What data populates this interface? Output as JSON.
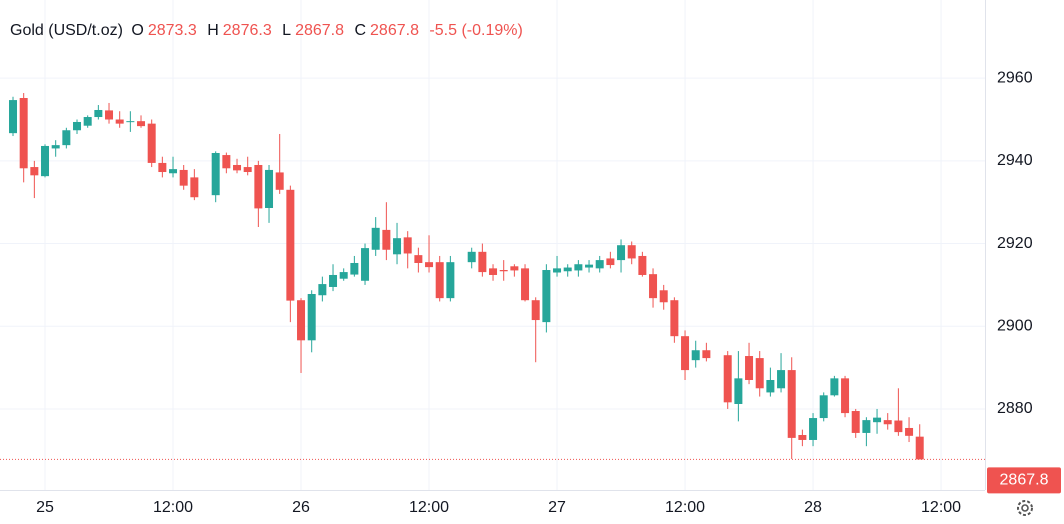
{
  "chart_data": {
    "type": "candlestick",
    "title": "Gold (USD/t.oz)",
    "ohlc_labels": [
      "O",
      "H",
      "L",
      "C"
    ],
    "change": "-5.5 (-0.19%)",
    "up_color": "#26a69a",
    "down_color": "#ef5350",
    "xlim": [
      -4.22,
      88.12
    ],
    "xticks": [
      {
        "value": 0,
        "label": "25"
      },
      {
        "value": 12,
        "label": "12:00"
      },
      {
        "value": 24,
        "label": "26"
      },
      {
        "value": 36,
        "label": "12:00"
      },
      {
        "value": 48,
        "label": "27"
      },
      {
        "value": 60,
        "label": "12:00"
      },
      {
        "value": 72,
        "label": "28"
      },
      {
        "value": 84,
        "label": "12:00"
      }
    ],
    "ylim": [
      2860.4,
      2978.9
    ],
    "yticks": [
      2880,
      2900,
      2920,
      2940,
      2960
    ],
    "grid": true,
    "x": [
      -3,
      -2,
      -1,
      0,
      1,
      2,
      3,
      4,
      5,
      6,
      7,
      8,
      9,
      10,
      11,
      12,
      13,
      14,
      16,
      17,
      18,
      19,
      20,
      21,
      22,
      23,
      24,
      25,
      26,
      27,
      28,
      29,
      30,
      31,
      32,
      33,
      34,
      35,
      36,
      37,
      38,
      40,
      41,
      42,
      43,
      44,
      45,
      46,
      47,
      48,
      49,
      50,
      51,
      52,
      53,
      54,
      55,
      56,
      57,
      58,
      59,
      60,
      61,
      62,
      64,
      65,
      66,
      67,
      68,
      69,
      70,
      71,
      72,
      73,
      74,
      75,
      76,
      77,
      78,
      79,
      80,
      81,
      82
    ],
    "open": [
      2946.7,
      2955.2,
      2938.5,
      2936.3,
      2943,
      2943.8,
      2947.4,
      2948.5,
      2950.6,
      2952.2,
      2950,
      2949.5,
      2949.6,
      2949,
      2939.5,
      2937,
      2937.8,
      2936,
      2931.7,
      2941.4,
      2939,
      2938.5,
      2939,
      2928.6,
      2937.2,
      2933,
      2906.3,
      2896.6,
      2907.5,
      2909.5,
      2911.5,
      2912.5,
      2911,
      2918.5,
      2923.3,
      2917.4,
      2921.5,
      2917.2,
      2915.5,
      2915.5,
      2906.8,
      2915.5,
      2918,
      2914,
      2913.6,
      2914.5,
      2914,
      2906.3,
      2901,
      2913,
      2913.3,
      2913.5,
      2914.2,
      2914,
      2916.4,
      2916,
      2919.6,
      2917,
      2912.6,
      2908.7,
      2906.3,
      2897.6,
      2891.8,
      2894.2,
      2893,
      2881.2,
      2892.8,
      2892.3,
      2884,
      2885,
      2889.4,
      2873.7,
      2872.5,
      2877.8,
      2883.3,
      2887.4,
      2879.5,
      2874.2,
      2876.8,
      2877.3,
      2877.2,
      2875.4,
      2873.3
    ],
    "high": [
      2955.5,
      2956.4,
      2940,
      2944,
      2945,
      2948,
      2950,
      2951,
      2953.5,
      2954,
      2952,
      2952,
      2951,
      2950,
      2941,
      2941,
      2939,
      2938,
      2942.3,
      2942,
      2940.5,
      2941,
      2940,
      2939,
      2946.5,
      2934,
      2906.8,
      2908.7,
      2912,
      2915,
      2914,
      2917,
      2920,
      2926.4,
      2930,
      2925,
      2923,
      2919,
      2922,
      2917,
      2917,
      2919,
      2920,
      2915,
      2916,
      2915,
      2915,
      2907,
      2915,
      2917,
      2915,
      2916,
      2916,
      2917,
      2918,
      2921,
      2920.5,
      2918,
      2914,
      2910,
      2907,
      2899,
      2896.5,
      2896,
      2894,
      2894,
      2896,
      2894,
      2890,
      2893.5,
      2892.5,
      2875,
      2879,
      2884,
      2888,
      2888,
      2880,
      2878,
      2880,
      2879,
      2885,
      2878,
      2876.3
    ],
    "low": [
      2946,
      2934.8,
      2931,
      2936,
      2941,
      2943,
      2946.5,
      2948,
      2950,
      2949,
      2948,
      2947,
      2948,
      2938.5,
      2936,
      2936,
      2933,
      2930.5,
      2930,
      2937,
      2937,
      2936.5,
      2924,
      2925,
      2932,
      2901,
      2888.7,
      2893.7,
      2906,
      2908.5,
      2911,
      2912,
      2910,
      2917,
      2916,
      2915,
      2914,
      2913,
      2913,
      2906,
      2906,
      2914,
      2912,
      2911,
      2911,
      2912,
      2906,
      2891.3,
      2898.5,
      2912,
      2912,
      2912,
      2913,
      2913,
      2914,
      2913,
      2915,
      2912,
      2904.5,
      2904,
      2896,
      2887,
      2890,
      2891.5,
      2880,
      2877,
      2886,
      2883,
      2883,
      2884,
      2867.9,
      2871,
      2871,
      2877,
      2883,
      2878,
      2873,
      2871,
      2874,
      2875,
      2873.5,
      2872,
      2867.8
    ],
    "close": [
      2954.7,
      2938.2,
      2936.5,
      2943.6,
      2943.8,
      2947.4,
      2949.4,
      2950.6,
      2952.3,
      2950,
      2949,
      2949.6,
      2948.4,
      2939.5,
      2937.3,
      2938,
      2934,
      2931.2,
      2941.9,
      2938.2,
      2937.7,
      2937.3,
      2928.5,
      2937.8,
      2933,
      2906.2,
      2896.6,
      2907.8,
      2910.2,
      2912.4,
      2913.1,
      2915.3,
      2918.9,
      2923.8,
      2918.5,
      2921.3,
      2917.6,
      2915.3,
      2914.3,
      2906.8,
      2915.5,
      2918,
      2913.1,
      2912.4,
      2913.3,
      2913.5,
      2906.3,
      2901.5,
      2913.6,
      2914,
      2914.2,
      2915,
      2914.9,
      2916,
      2914.8,
      2919.6,
      2916.4,
      2912.4,
      2906.8,
      2905.8,
      2897.6,
      2889.4,
      2894.2,
      2892.3,
      2881.6,
      2887.4,
      2887,
      2885,
      2887,
      2889.4,
      2873,
      2872.5,
      2877.8,
      2883.3,
      2887.4,
      2879,
      2874.2,
      2877.3,
      2877.9,
      2876.3,
      2874.4,
      2873.5,
      2867.8
    ]
  }
}
